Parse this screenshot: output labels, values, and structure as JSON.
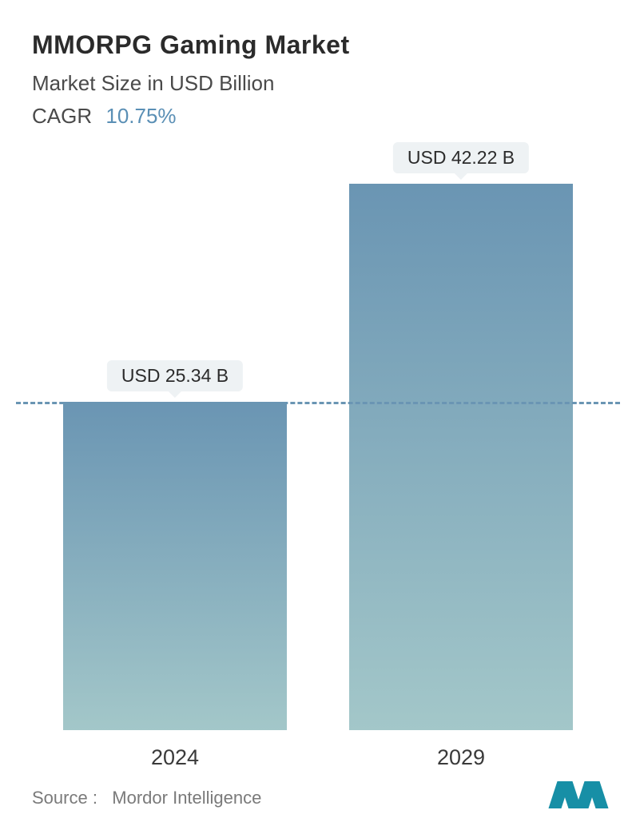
{
  "header": {
    "title": "MMORPG Gaming Market",
    "subtitle": "Market Size in USD Billion",
    "cagr_label": "CAGR",
    "cagr_value": "10.75%"
  },
  "chart": {
    "type": "bar",
    "background_color": "#ffffff",
    "bar_gradient_top": "#6a95b3",
    "bar_gradient_bottom": "#a3c7c9",
    "dashed_line_color": "#6a95b3",
    "max_value": 42.22,
    "reference_line_at": 25.34,
    "bars": [
      {
        "year": "2024",
        "value": 25.34,
        "label": "USD 25.34 B"
      },
      {
        "year": "2029",
        "value": 42.22,
        "label": "USD 42.22 B"
      }
    ],
    "badge_bg": "#eef2f4",
    "badge_text_color": "#2b2b2b",
    "badge_fontsize": 23,
    "xlabel_fontsize": 27,
    "title_fontsize": 32,
    "subtitle_fontsize": 26
  },
  "footer": {
    "source_label": "Source :",
    "source_name": "Mordor Intelligence",
    "logo_color": "#178fa6"
  }
}
